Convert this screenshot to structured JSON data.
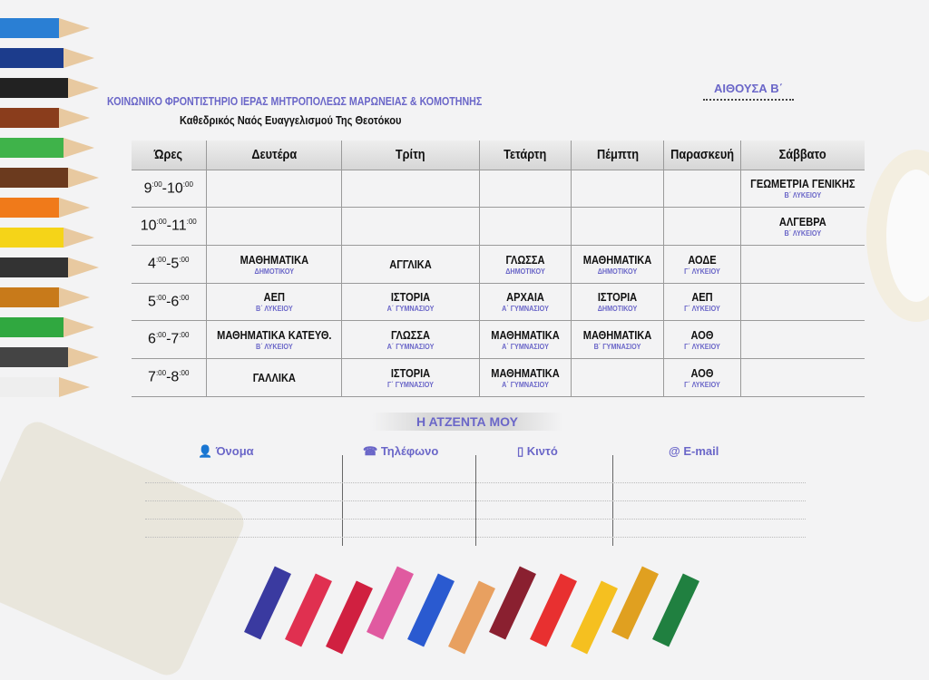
{
  "header": {
    "title": "ΚΟΙΝΩΝΙΚΟ ΦΡΟΝΤΙΣΤΗΡΙΟ ΙΕΡΑΣ ΜΗΤΡΟΠΟΛΕΩΣ ΜΑΡΩΝΕΙΑΣ & ΚΟΜΟΤΗΝΗΣ",
    "subtitle": "Καθεδρικός Ναός Ευαγγελισμού Της Θεοτόκου",
    "room": "ΑΙΘΟΥΣΑ Β΄"
  },
  "timetable": {
    "columns": [
      "Ώρες",
      "Δευτέρα",
      "Τρίτη",
      "Τετάρτη",
      "Πέμπτη",
      "Παρασκευή",
      "Σάββατο"
    ],
    "rows": [
      {
        "from": "9",
        "to": "10",
        "cells": [
          null,
          null,
          null,
          null,
          null,
          {
            "subject": "ΓΕΩΜΕΤΡΙΑ ΓΕΝΙΚΗΣ",
            "class": "Β΄ ΛΥΚΕΙΟΥ"
          }
        ]
      },
      {
        "from": "10",
        "to": "11",
        "cells": [
          null,
          null,
          null,
          null,
          null,
          {
            "subject": "ΑΛΓΕΒΡΑ",
            "class": "Β΄ ΛΥΚΕΙΟΥ"
          }
        ]
      },
      {
        "from": "4",
        "to": "5",
        "cells": [
          {
            "subject": "ΜΑΘΗΜΑΤΙΚΑ",
            "class": "ΔΗΜΟΤΙΚΟΥ"
          },
          {
            "subject": "ΑΓΓΛΙΚΑ"
          },
          {
            "subject": "ΓΛΩΣΣΑ",
            "class": "ΔΗΜΟΤΙΚΟΥ"
          },
          {
            "subject": "ΜΑΘΗΜΑΤΙΚΑ",
            "class": "ΔΗΜΟΤΙΚΟΥ"
          },
          {
            "subject": "ΑΟΔΕ",
            "class": "Γ΄ ΛΥΚΕΙΟΥ"
          },
          null
        ]
      },
      {
        "from": "5",
        "to": "6",
        "cells": [
          {
            "subject": "ΑΕΠ",
            "class": "Β΄ ΛΥΚΕΙΟΥ"
          },
          {
            "subject": "ΙΣΤΟΡΙΑ",
            "class": "Α΄ ΓΥΜΝΑΣΙΟΥ"
          },
          {
            "subject": "ΑΡΧΑΙΑ",
            "class": "Α΄ ΓΥΜΝΑΣΙΟΥ"
          },
          {
            "subject": "ΙΣΤΟΡΙΑ",
            "class": "ΔΗΜΟΤΙΚΟΥ"
          },
          {
            "subject": "ΑΕΠ",
            "class": "Γ΄ ΛΥΚΕΙΟΥ"
          },
          null
        ]
      },
      {
        "from": "6",
        "to": "7",
        "cells": [
          {
            "subject": "ΜΑΘΗΜΑΤΙΚΑ ΚΑΤΕΥΘ.",
            "class": "Β΄ ΛΥΚΕΙΟΥ"
          },
          {
            "subject": "ΓΛΩΣΣΑ",
            "class": "Α΄ ΓΥΜΝΑΣΙΟΥ"
          },
          {
            "subject": "ΜΑΘΗΜΑΤΙΚΑ",
            "class": "Α΄ ΓΥΜΝΑΣΙΟΥ"
          },
          {
            "subject": "ΜΑΘΗΜΑΤΙΚΑ",
            "class": "Β΄ ΓΥΜΝΑΣΙΟΥ"
          },
          {
            "subject": "ΑΟΘ",
            "class": "Γ΄ ΛΥΚΕΙΟΥ"
          },
          null
        ]
      },
      {
        "from": "7",
        "to": "8",
        "cells": [
          {
            "subject": "ΓΑΛΛΙΚΑ"
          },
          {
            "subject": "ΙΣΤΟΡΙΑ",
            "class": "Γ΄ ΓΥΜΝΑΣΙΟΥ"
          },
          {
            "subject": "ΜΑΘΗΜΑΤΙΚΑ",
            "class": "Α΄ ΓΥΜΝΑΣΙΟΥ"
          },
          null,
          {
            "subject": "ΑΟΘ",
            "class": "Γ΄ ΛΥΚΕΙΟΥ"
          },
          null
        ]
      }
    ],
    "minutes": ":00"
  },
  "agenda": {
    "title": "Η ΑΤΖΕΝΤΑ ΜΟΥ",
    "columns": [
      {
        "label": "Όνομα",
        "icon": "person-icon"
      },
      {
        "label": "Τηλέφωνο",
        "icon": "telephone-icon"
      },
      {
        "label": "Κιντό",
        "icon": "mobile-phone-icon"
      },
      {
        "label": "E-mail",
        "icon": "at-icon"
      }
    ]
  },
  "colors": {
    "accent": "#6a66c8",
    "text": "#111111"
  }
}
